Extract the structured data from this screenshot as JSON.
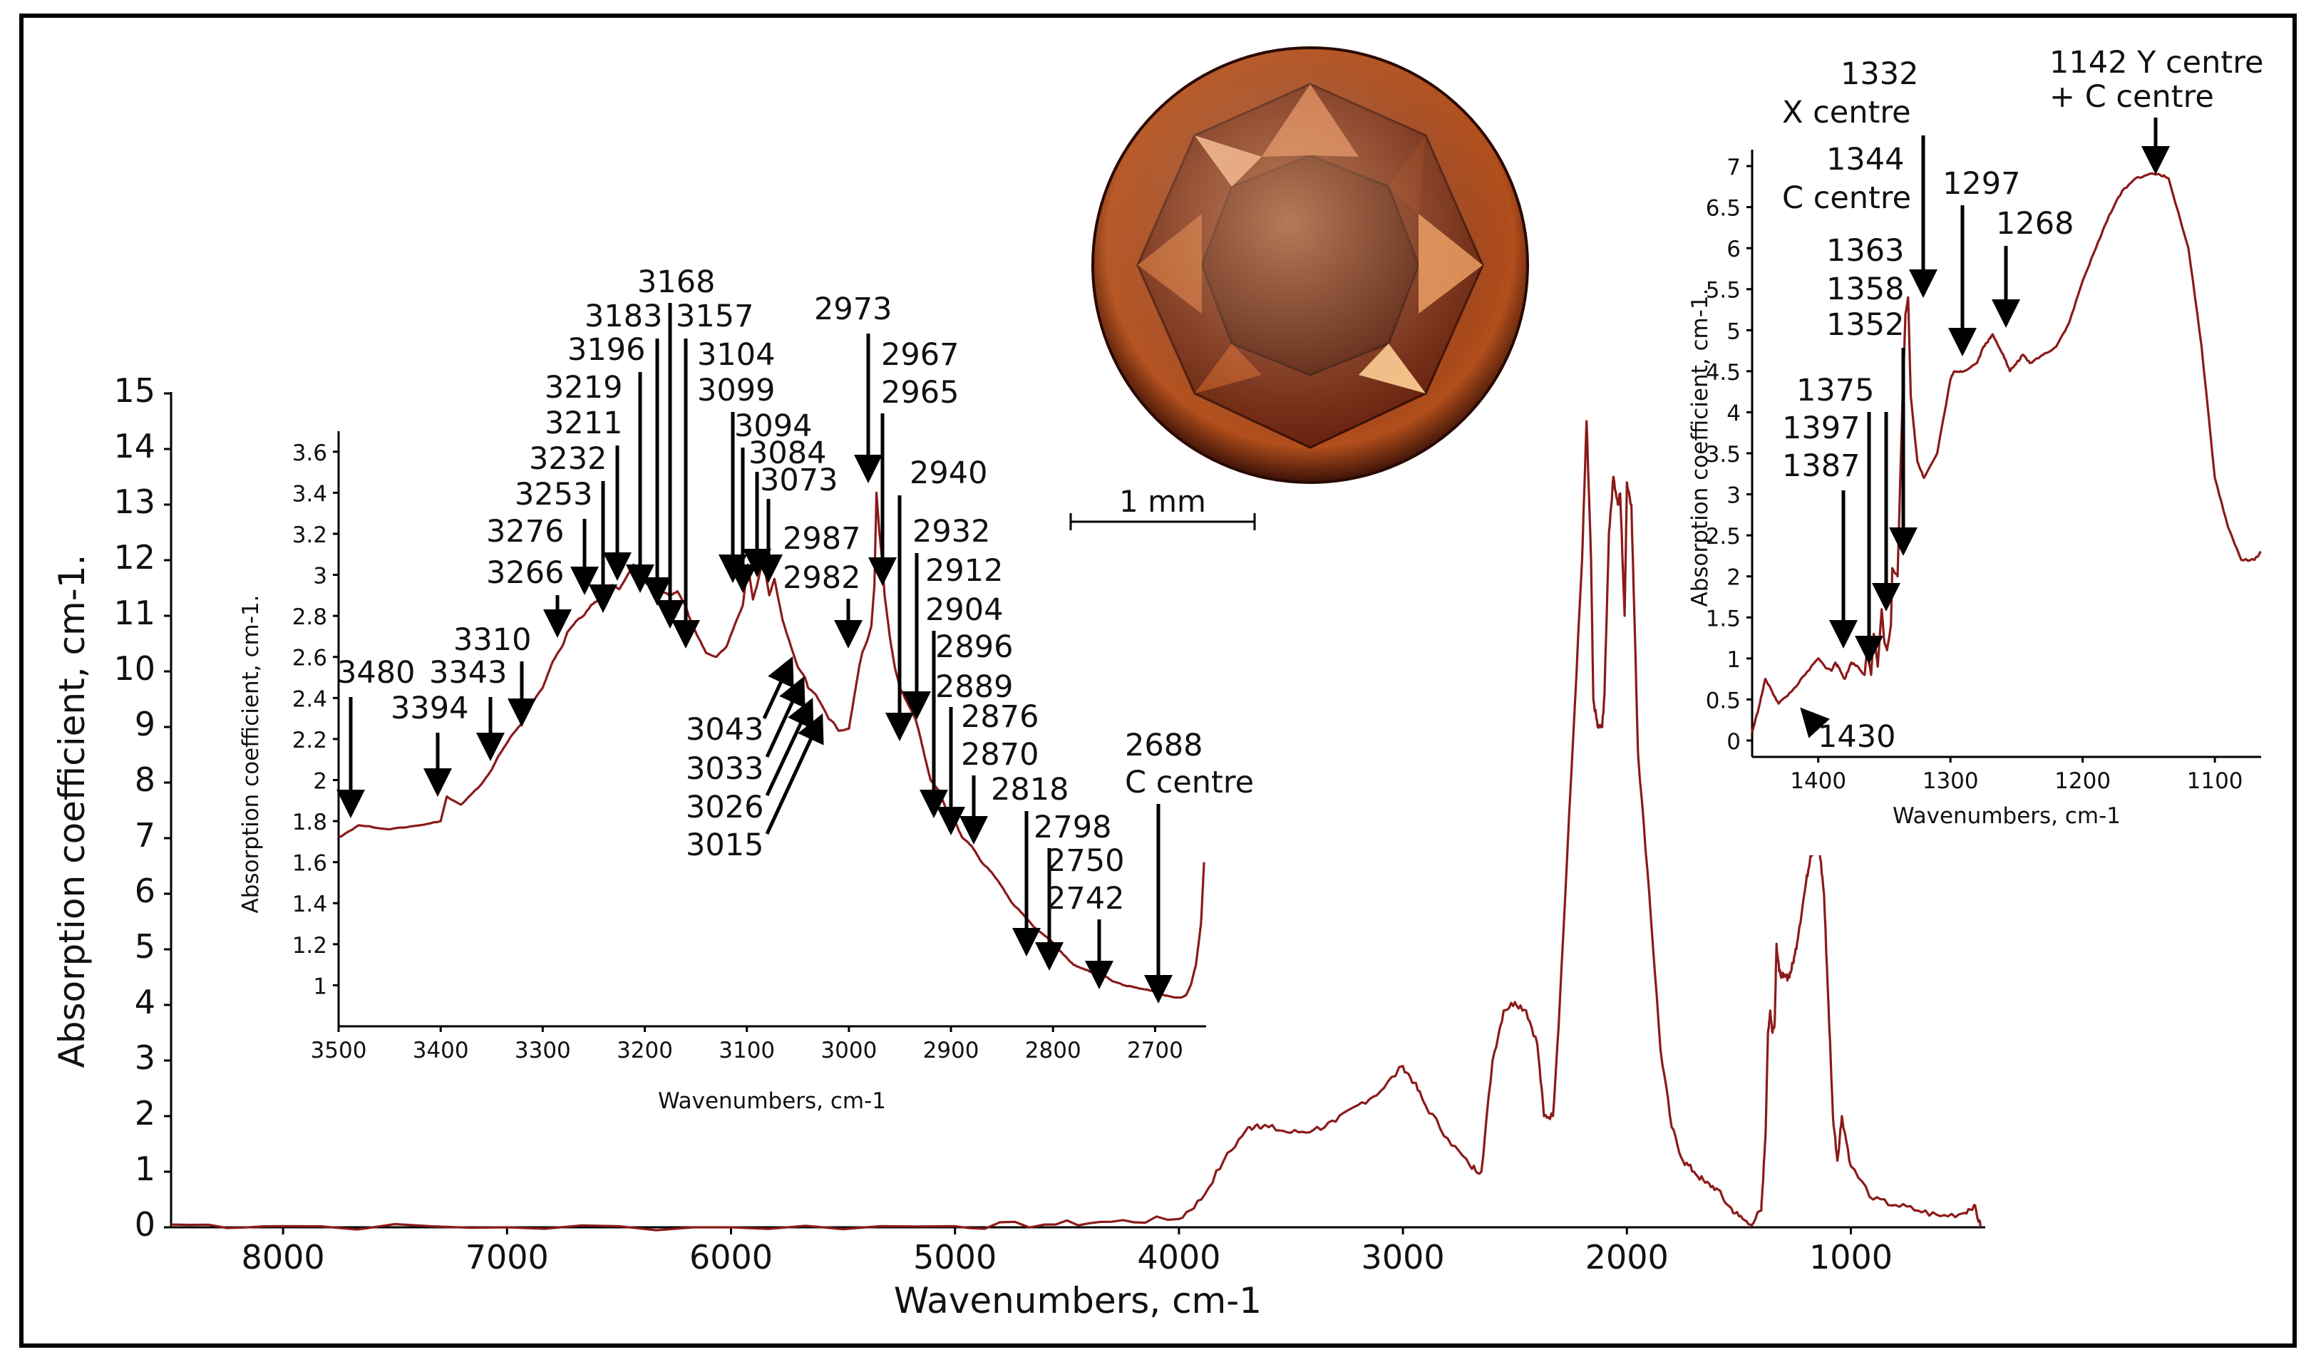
{
  "colors": {
    "curve": "#8b1a1a",
    "axis": "#000000"
  },
  "chart_data": [
    {
      "id": "main",
      "type": "line",
      "title": "",
      "xlabel": "Wavenumbers, cm-1",
      "ylabel": "Absorption coefficient, cm-1.",
      "xlim": [
        8500,
        400
      ],
      "ylim": [
        0,
        15
      ],
      "xticks": [
        "8000",
        "7000",
        "6000",
        "5000",
        "4000",
        "3000",
        "2000",
        "1000"
      ],
      "yticks": [
        "0",
        "1",
        "2",
        "3",
        "4",
        "5",
        "6",
        "7",
        "8",
        "9",
        "10",
        "11",
        "12",
        "13",
        "14",
        "15"
      ],
      "series": [
        {
          "x": [
            8500,
            8000,
            7000,
            6000,
            5000,
            4600,
            4300,
            4000,
            3900,
            3800,
            3700,
            3650,
            3600,
            3500,
            3400,
            3300,
            3200,
            3100,
            3000,
            2950,
            2900,
            2800,
            2700,
            2650,
            2600,
            2550,
            2500,
            2450,
            2400,
            2370,
            2330,
            2300,
            2250,
            2200,
            2180,
            2160,
            2150,
            2130,
            2110,
            2100,
            2080,
            2060,
            2040,
            2030,
            2010,
            2000,
            1980,
            1960,
            1950,
            1900,
            1850,
            1800,
            1750,
            1700,
            1650,
            1600,
            1550,
            1500,
            1450,
            1400,
            1390,
            1380,
            1370,
            1360,
            1350,
            1340,
            1332,
            1320,
            1300,
            1280,
            1268,
            1250,
            1230,
            1200,
            1180,
            1160,
            1150,
            1140,
            1120,
            1100,
            1080,
            1060,
            1040,
            1000,
            900,
            800,
            700,
            600,
            500,
            450,
            420
          ],
          "y": [
            0.05,
            0.02,
            0.0,
            0.0,
            0.02,
            0.05,
            0.1,
            0.15,
            0.5,
            1.2,
            1.75,
            1.85,
            1.8,
            1.7,
            1.75,
            1.9,
            2.2,
            2.45,
            2.9,
            2.6,
            2.2,
            1.6,
            1.1,
            1.0,
            3.0,
            3.9,
            4.05,
            3.9,
            3.3,
            2.0,
            2.0,
            4.0,
            8.0,
            12.0,
            14.5,
            12.0,
            9.5,
            9.0,
            9.0,
            9.6,
            12.5,
            13.5,
            13.0,
            13.2,
            11.0,
            13.4,
            13.0,
            10.0,
            8.5,
            6.0,
            3.2,
            1.8,
            1.2,
            1.0,
            0.8,
            0.7,
            0.4,
            0.2,
            0.05,
            0.3,
            1.0,
            1.8,
            3.5,
            3.9,
            3.5,
            3.7,
            5.1,
            4.6,
            4.5,
            4.5,
            4.6,
            4.9,
            5.4,
            6.2,
            6.7,
            6.8,
            6.9,
            6.8,
            6.0,
            4.0,
            2.0,
            1.2,
            2.0,
            1.1,
            0.5,
            0.4,
            0.3,
            0.2,
            0.25,
            0.4,
            0.0
          ]
        }
      ]
    },
    {
      "id": "inset-left",
      "type": "line",
      "title": "",
      "xlabel": "Wavenumbers, cm-1",
      "ylabel": "Absorption coefficient, cm-1.",
      "xlim": [
        3500,
        2650
      ],
      "ylim": [
        0.8,
        3.7
      ],
      "xticks": [
        "3500",
        "3400",
        "3300",
        "3200",
        "3100",
        "3000",
        "2900",
        "2800",
        "2700"
      ],
      "yticks": [
        "1",
        "1.2",
        "1.4",
        "1.6",
        "1.8",
        "2",
        "2.2",
        "2.4",
        "2.6",
        "2.8",
        "3",
        "3.2",
        "3.4",
        "3.6"
      ],
      "series": [
        {
          "x": [
            3500,
            3480,
            3450,
            3420,
            3400,
            3394,
            3380,
            3360,
            3350,
            3343,
            3330,
            3320,
            3310,
            3300,
            3290,
            3280,
            3276,
            3266,
            3260,
            3253,
            3245,
            3240,
            3232,
            3225,
            3219,
            3211,
            3205,
            3196,
            3190,
            3183,
            3175,
            3168,
            3160,
            3157,
            3150,
            3140,
            3130,
            3120,
            3110,
            3104,
            3099,
            3094,
            3090,
            3084,
            3078,
            3073,
            3065,
            3060,
            3050,
            3043,
            3040,
            3033,
            3026,
            3020,
            3015,
            3010,
            3000,
            2995,
            2990,
            2987,
            2982,
            2978,
            2975,
            2973,
            2970,
            2967,
            2965,
            2960,
            2955,
            2950,
            2940,
            2935,
            2932,
            2925,
            2920,
            2912,
            2908,
            2904,
            2900,
            2896,
            2892,
            2889,
            2880,
            2876,
            2870,
            2860,
            2850,
            2840,
            2830,
            2818,
            2810,
            2798,
            2790,
            2780,
            2770,
            2760,
            2750,
            2742,
            2730,
            2720,
            2710,
            2700,
            2690,
            2688,
            2680,
            2675,
            2670,
            2665,
            2660,
            2655,
            2652
          ],
          "y": [
            1.72,
            1.78,
            1.76,
            1.78,
            1.8,
            1.92,
            1.88,
            1.98,
            2.05,
            2.12,
            2.22,
            2.28,
            2.38,
            2.45,
            2.58,
            2.66,
            2.72,
            2.78,
            2.8,
            2.85,
            2.88,
            2.9,
            2.95,
            2.93,
            2.98,
            3.05,
            2.98,
            2.95,
            2.93,
            2.92,
            2.9,
            2.92,
            2.85,
            2.8,
            2.72,
            2.62,
            2.6,
            2.65,
            2.78,
            2.85,
            3.05,
            2.88,
            2.95,
            3.08,
            2.9,
            2.98,
            2.78,
            2.7,
            2.55,
            2.5,
            2.45,
            2.42,
            2.36,
            2.3,
            2.28,
            2.24,
            2.25,
            2.4,
            2.55,
            2.62,
            2.68,
            2.75,
            2.95,
            3.4,
            3.2,
            3.05,
            2.9,
            2.7,
            2.55,
            2.45,
            2.35,
            2.3,
            2.25,
            2.1,
            2.0,
            1.95,
            1.9,
            1.85,
            1.82,
            1.8,
            1.75,
            1.72,
            1.68,
            1.65,
            1.6,
            1.55,
            1.48,
            1.4,
            1.35,
            1.28,
            1.25,
            1.2,
            1.15,
            1.1,
            1.08,
            1.06,
            1.05,
            1.02,
            1.0,
            0.99,
            0.98,
            0.97,
            0.95,
            0.95,
            0.94,
            0.94,
            0.95,
            1.0,
            1.1,
            1.3,
            1.6
          ]
        }
      ]
    },
    {
      "id": "inset-right",
      "type": "line",
      "title": "",
      "xlabel": "Wavenumbers, cm-1",
      "ylabel": "Absorption coefficient, cm-1.",
      "xlim": [
        1450,
        1065
      ],
      "ylim": [
        -0.2,
        7.2
      ],
      "xticks": [
        "1400",
        "1300",
        "1200",
        "1100"
      ],
      "yticks": [
        "0",
        "0.5",
        "1",
        "1.5",
        "2",
        "2.5",
        "3",
        "3.5",
        "4",
        "4.5",
        "5",
        "5.5",
        "6",
        "6.5",
        "7"
      ],
      "series": [
        {
          "x": [
            1450,
            1445,
            1440,
            1435,
            1430,
            1420,
            1410,
            1400,
            1395,
            1390,
            1387,
            1385,
            1380,
            1375,
            1370,
            1365,
            1363,
            1360,
            1358,
            1355,
            1352,
            1350,
            1348,
            1345,
            1344,
            1340,
            1336,
            1334,
            1332,
            1330,
            1325,
            1320,
            1310,
            1300,
            1297,
            1290,
            1280,
            1275,
            1270,
            1268,
            1260,
            1255,
            1250,
            1245,
            1240,
            1230,
            1220,
            1210,
            1200,
            1190,
            1180,
            1170,
            1160,
            1150,
            1142,
            1135,
            1120,
            1110,
            1100,
            1090,
            1080,
            1070,
            1065
          ],
          "y": [
            0.1,
            0.4,
            0.75,
            0.6,
            0.45,
            0.6,
            0.8,
            1.0,
            0.9,
            0.85,
            0.95,
            0.9,
            0.75,
            0.95,
            0.9,
            0.8,
            1.1,
            0.8,
            1.3,
            0.9,
            1.6,
            1.2,
            1.1,
            1.4,
            2.1,
            2.0,
            4.3,
            5.2,
            5.4,
            4.2,
            3.4,
            3.2,
            3.5,
            4.4,
            4.5,
            4.5,
            4.6,
            4.8,
            4.9,
            4.95,
            4.7,
            4.5,
            4.6,
            4.7,
            4.6,
            4.7,
            4.8,
            5.1,
            5.6,
            6.0,
            6.4,
            6.7,
            6.85,
            6.9,
            6.9,
            6.85,
            6.0,
            4.8,
            3.2,
            2.6,
            2.2,
            2.2,
            2.3
          ]
        }
      ]
    }
  ],
  "annotations": {
    "left_inset_peaks": [
      "3480",
      "3394",
      "3343",
      "3310",
      "3276",
      "3266",
      "3253",
      "3232",
      "3219",
      "3211",
      "3196",
      "3183",
      "3168",
      "3157",
      "3104",
      "3099",
      "3094",
      "3084",
      "3073",
      "3043",
      "3033",
      "3026",
      "3015",
      "2987",
      "2982",
      "2973",
      "2967",
      "2965",
      "2940",
      "2932",
      "2912",
      "2904",
      "2896",
      "2889",
      "2876",
      "2870",
      "2818",
      "2798",
      "2750",
      "2742",
      "2688",
      "C centre"
    ],
    "right_inset_peaks": [
      "1332",
      "X centre",
      "1344",
      "C centre",
      "1363",
      "1358",
      "1352",
      "1375",
      "1397",
      "1387",
      "1430",
      "1297",
      "1268",
      "1142 Y centre",
      "+ C centre"
    ]
  },
  "scale_bar": {
    "label": "1 mm"
  }
}
